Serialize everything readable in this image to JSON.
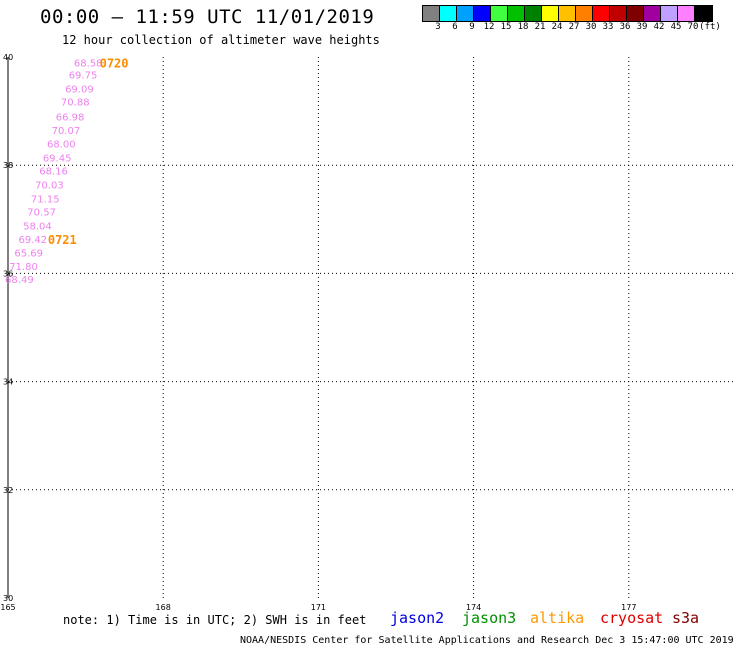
{
  "header": {
    "title": "00:00 – 11:59 UTC 11/01/2019",
    "subtitle": "12 hour collection of altimeter wave heights"
  },
  "colorbar": {
    "colors": [
      "#808080",
      "#00ffff",
      "#00a0ff",
      "#0000ff",
      "#40ff40",
      "#00c000",
      "#008000",
      "#ffff00",
      "#ffc000",
      "#ff8000",
      "#ff0000",
      "#c00000",
      "#800000",
      "#a000a0",
      "#c0a0ff",
      "#ff80ff",
      "#000000"
    ],
    "labels": [
      "3",
      "6",
      "9",
      "12",
      "15",
      "18",
      "21",
      "24",
      "27",
      "30",
      "33",
      "36",
      "39",
      "42",
      "45",
      "70",
      "(ft)"
    ]
  },
  "chart_data": {
    "type": "scatter",
    "xlim": [
      165,
      180
    ],
    "ylim": [
      30,
      40
    ],
    "x_ticks": [
      "165",
      "168",
      "171",
      "174",
      "177"
    ],
    "y_ticks": [
      "30",
      "32",
      "34",
      "36",
      "38",
      "40"
    ],
    "grid": true,
    "series": [
      {
        "name": "s3a",
        "color": "#ee82ee",
        "points": [
          {
            "x": 166.55,
            "y": 39.9,
            "label": "68.58"
          },
          {
            "x": 166.45,
            "y": 39.68,
            "label": "69.75"
          },
          {
            "x": 166.38,
            "y": 39.42,
            "label": "69.09"
          },
          {
            "x": 166.3,
            "y": 39.18,
            "label": "70.88"
          },
          {
            "x": 166.2,
            "y": 38.9,
            "label": "66.98"
          },
          {
            "x": 166.12,
            "y": 38.65,
            "label": "70.07"
          },
          {
            "x": 166.03,
            "y": 38.4,
            "label": "68.00"
          },
          {
            "x": 165.95,
            "y": 38.14,
            "label": "69.45"
          },
          {
            "x": 165.88,
            "y": 37.9,
            "label": "68.16"
          },
          {
            "x": 165.8,
            "y": 37.64,
            "label": "70.03"
          },
          {
            "x": 165.72,
            "y": 37.38,
            "label": "71.15"
          },
          {
            "x": 165.65,
            "y": 37.14,
            "label": "70.57"
          },
          {
            "x": 165.57,
            "y": 36.89,
            "label": "58.04"
          },
          {
            "x": 165.48,
            "y": 36.64,
            "label": "69.42"
          },
          {
            "x": 165.4,
            "y": 36.39,
            "label": "65.69"
          },
          {
            "x": 165.3,
            "y": 36.14,
            "label": "71.80"
          },
          {
            "x": 165.22,
            "y": 35.9,
            "label": "68.49"
          }
        ]
      }
    ],
    "time_annotations": [
      {
        "x": 167.05,
        "y": 39.9,
        "label": "0720"
      },
      {
        "x": 166.05,
        "y": 36.64,
        "label": "0721"
      }
    ]
  },
  "note": "note: 1) Time is in UTC; 2) SWH is in feet",
  "satellites": [
    {
      "name": "jason2",
      "color": "#0000e0"
    },
    {
      "name": "jason3",
      "color": "#009000"
    },
    {
      "name": "altika",
      "color": "#ff9900"
    },
    {
      "name": "cryosat",
      "color": "#dd0000"
    },
    {
      "name": "s3a",
      "color": "#800000"
    }
  ],
  "footer": "NOAA/NESDIS Center for Satellite Applications and Research    Dec  3 15:47:00 UTC 2019"
}
